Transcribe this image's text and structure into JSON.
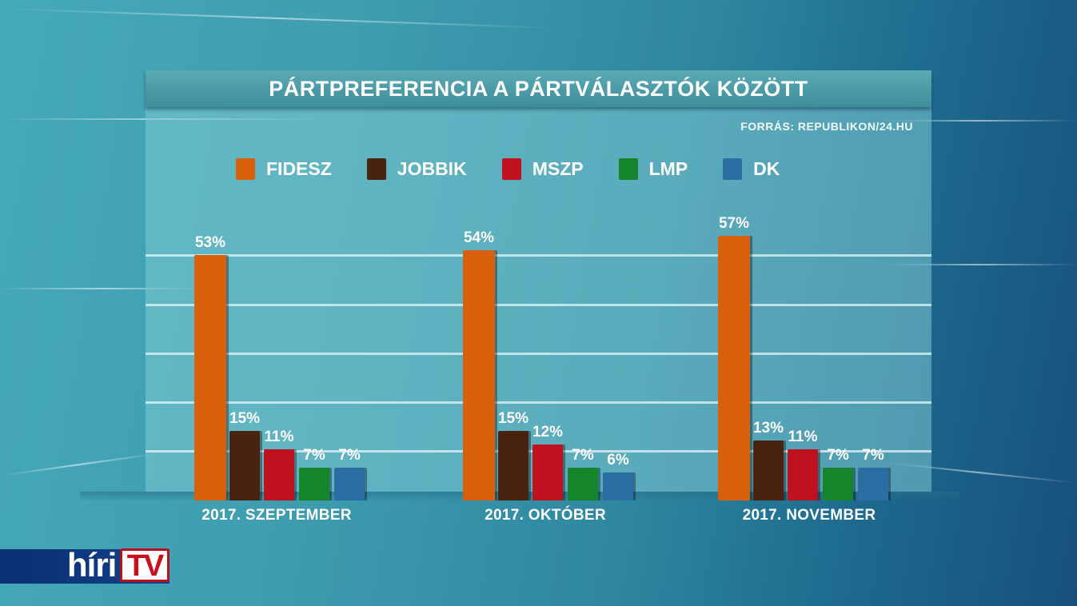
{
  "title": "PÁRTPREFERENCIA A PÁRTVÁLASZTÓK KÖZÖTT",
  "source": "FORRÁS: REPUBLIKON/24.HU",
  "logo": {
    "part1": "híri",
    "part2": "TV"
  },
  "colors": {
    "FIDESZ": "#d8600a",
    "JOBBIK": "#4a2210",
    "MSZP": "#c0121e",
    "LMP": "#14852a",
    "DK": "#2a6ea4"
  },
  "legend": [
    {
      "label": "FIDESZ",
      "color": "#d8600a"
    },
    {
      "label": "JOBBIK",
      "color": "#4a2210"
    },
    {
      "label": "MSZP",
      "color": "#c0121e"
    },
    {
      "label": "LMP",
      "color": "#14852a"
    },
    {
      "label": "DK",
      "color": "#2a6ea4"
    }
  ],
  "groups": [
    {
      "label": "2017. SZEPTEMBER",
      "values": [
        "53%",
        "15%",
        "11%",
        "7%",
        "7%"
      ]
    },
    {
      "label": "2017. OKTÓBER",
      "values": [
        "54%",
        "15%",
        "12%",
        "7%",
        "6%"
      ]
    },
    {
      "label": "2017. NOVEMBER",
      "values": [
        "57%",
        "13%",
        "11%",
        "7%",
        "7%"
      ]
    }
  ],
  "chart_data": {
    "type": "bar",
    "title": "PÁRTPREFERENCIA A PÁRTVÁLASZTÓK KÖZÖTT",
    "subtitle": "FORRÁS: REPUBLIKON/24.HU",
    "categories": [
      "2017. SZEPTEMBER",
      "2017. OKTÓBER",
      "2017. NOVEMBER"
    ],
    "series": [
      {
        "name": "FIDESZ",
        "values": [
          53,
          54,
          57
        ]
      },
      {
        "name": "JOBBIK",
        "values": [
          15,
          15,
          13
        ]
      },
      {
        "name": "MSZP",
        "values": [
          11,
          12,
          11
        ]
      },
      {
        "name": "LMP",
        "values": [
          7,
          7,
          7
        ]
      },
      {
        "name": "DK",
        "values": [
          7,
          6,
          7
        ]
      }
    ],
    "xlabel": "",
    "ylabel": "%",
    "ylim": [
      0,
      60
    ],
    "grid": true,
    "legend_position": "top",
    "value_labels": true
  }
}
